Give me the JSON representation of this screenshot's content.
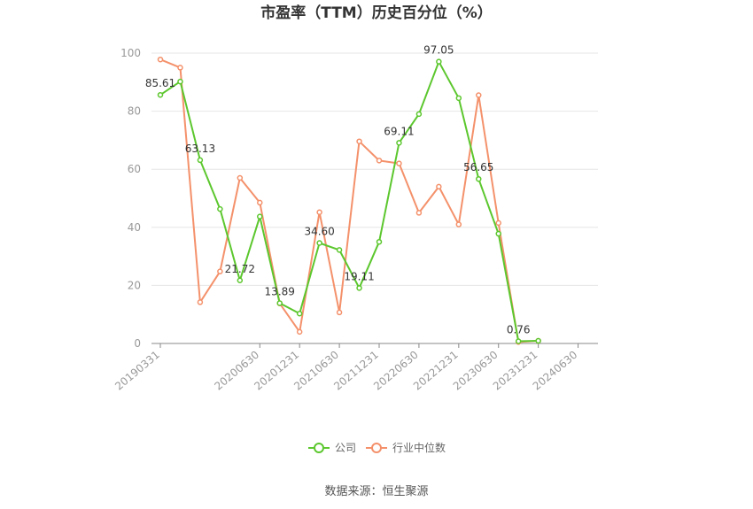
{
  "chart_data": {
    "type": "line",
    "title": "市盈率（TTM）历史百分位（%）",
    "ylim": [
      0,
      100
    ],
    "yticks": [
      0,
      20,
      40,
      60,
      80,
      100
    ],
    "x": [
      "20190331",
      "20190630",
      "20190930",
      "20191231",
      "20200331",
      "20200630",
      "20200930",
      "20201231",
      "20210331",
      "20210630",
      "20210930",
      "20211231",
      "20220331",
      "20220630",
      "20220930",
      "20221231",
      "20230331",
      "20230630",
      "20230930",
      "20231231",
      "20240331",
      "20240630",
      "20240930"
    ],
    "xtick_labels": [
      "20190331",
      "20200630",
      "20201231",
      "20210630",
      "20211231",
      "20220630",
      "20221231",
      "20230630",
      "20231231",
      "20240630"
    ],
    "series": [
      {
        "name": "公司",
        "color": "#5cc72e",
        "values": [
          85.61,
          90.2,
          63.13,
          46.3,
          21.72,
          43.7,
          13.89,
          10.3,
          34.6,
          32.2,
          19.11,
          35.0,
          69.11,
          79.0,
          97.05,
          84.5,
          56.65,
          37.8,
          0.76,
          0.9,
          null,
          null,
          null
        ],
        "labels": {
          "0": "85.61",
          "2": "63.13",
          "4": "21.72",
          "6": "13.89",
          "8": "34.60",
          "10": "19.11",
          "12": "69.11",
          "14": "97.05",
          "16": "56.65",
          "18": "0.76"
        }
      },
      {
        "name": "行业中位数",
        "color": "#f4916b",
        "values": [
          97.8,
          95.0,
          14.2,
          24.8,
          57.0,
          48.5,
          13.8,
          4.0,
          45.2,
          10.7,
          69.6,
          63.0,
          62.0,
          45.0,
          54.0,
          41.0,
          85.5,
          41.5,
          0.5,
          0.9,
          null,
          null,
          null
        ]
      }
    ],
    "legend_position": "bottom-center",
    "grid": true
  },
  "source_text": "数据来源：恒生聚源"
}
